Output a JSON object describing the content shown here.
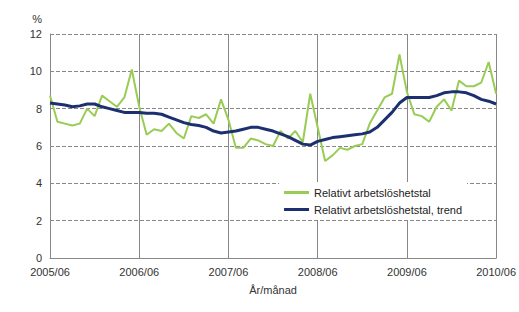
{
  "chart_data": {
    "type": "line",
    "x_label": "År/månad",
    "y_label": "%",
    "categories": [
      "2005/06",
      null,
      null,
      null,
      null,
      null,
      null,
      null,
      null,
      null,
      null,
      null,
      "2006/06",
      null,
      null,
      null,
      null,
      null,
      null,
      null,
      null,
      null,
      null,
      null,
      "2007/06",
      null,
      null,
      null,
      null,
      null,
      null,
      null,
      null,
      null,
      null,
      null,
      "2008/06",
      null,
      null,
      null,
      null,
      null,
      null,
      null,
      null,
      null,
      null,
      null,
      "2009/06",
      null,
      null,
      null,
      null,
      null,
      null,
      null,
      null,
      null,
      null,
      null,
      "2010/06"
    ],
    "series": [
      {
        "name": "Relativt arbetslöshetstal",
        "color": "#99cc55",
        "values": [
          8.7,
          7.3,
          7.2,
          7.1,
          7.2,
          8.0,
          7.6,
          8.7,
          8.4,
          8.1,
          8.6,
          10.1,
          8.1,
          6.6,
          6.9,
          6.8,
          7.2,
          6.7,
          6.4,
          7.6,
          7.5,
          7.7,
          7.2,
          8.5,
          7.4,
          5.9,
          5.9,
          6.4,
          6.3,
          6.1,
          6.0,
          6.8,
          6.4,
          6.8,
          6.2,
          8.8,
          7.0,
          5.2,
          5.5,
          5.9,
          5.8,
          6.0,
          6.1,
          7.2,
          7.9,
          8.6,
          8.8,
          10.9,
          8.9,
          7.7,
          7.6,
          7.3,
          8.1,
          8.5,
          7.9,
          9.5,
          9.2,
          9.2,
          9.4,
          10.5,
          8.8
        ]
      },
      {
        "name": "Relativt arbetslöshetstal, trend",
        "color": "#1c2f6e",
        "values": [
          8.3,
          8.25,
          8.2,
          8.1,
          8.15,
          8.25,
          8.25,
          8.1,
          8.0,
          7.9,
          7.8,
          7.8,
          7.8,
          7.75,
          7.75,
          7.7,
          7.55,
          7.4,
          7.25,
          7.15,
          7.1,
          7.0,
          6.8,
          6.7,
          6.75,
          6.8,
          6.9,
          7.0,
          7.0,
          6.9,
          6.8,
          6.65,
          6.5,
          6.3,
          6.1,
          6.05,
          6.25,
          6.35,
          6.45,
          6.5,
          6.55,
          6.6,
          6.65,
          6.75,
          7.0,
          7.4,
          7.8,
          8.3,
          8.6,
          8.6,
          8.6,
          8.6,
          8.7,
          8.85,
          8.9,
          8.9,
          8.85,
          8.7,
          8.5,
          8.4,
          8.25
        ]
      }
    ],
    "ylim": [
      0,
      12
    ],
    "yticks": [
      0,
      2,
      4,
      6,
      8,
      10,
      12
    ],
    "grid": true,
    "legend": "lower right"
  }
}
